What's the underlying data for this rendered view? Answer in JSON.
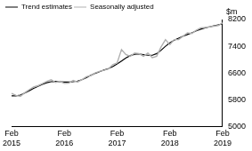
{
  "chart_data": {
    "type": "line",
    "y_label": "$m",
    "categories": [
      "Feb 2015",
      null,
      null,
      null,
      null,
      null,
      null,
      null,
      null,
      null,
      null,
      null,
      "Feb 2016",
      null,
      null,
      null,
      null,
      null,
      null,
      null,
      null,
      null,
      null,
      null,
      "Feb 2017",
      null,
      null,
      null,
      null,
      null,
      null,
      null,
      null,
      null,
      null,
      null,
      "Feb 2018",
      null,
      null,
      null,
      null,
      null,
      null,
      null,
      null,
      null,
      null,
      null,
      "Feb 2019"
    ],
    "series": [
      {
        "name": "Trend estimates",
        "color": "#000000",
        "values": [
          5920,
          5920,
          5940,
          6000,
          6070,
          6140,
          6200,
          6260,
          6310,
          6340,
          6350,
          6340,
          6330,
          6330,
          6340,
          6360,
          6400,
          6460,
          6530,
          6590,
          6640,
          6690,
          6730,
          6790,
          6870,
          6960,
          7050,
          7120,
          7160,
          7170,
          7150,
          7130,
          7130,
          7180,
          7280,
          7400,
          7500,
          7580,
          7640,
          7700,
          7750,
          7800,
          7860,
          7910,
          7950,
          7980,
          8010,
          8040,
          8070
        ]
      },
      {
        "name": "Seasonally adjusted",
        "color": "#b0b0b0",
        "values": [
          5990,
          5930,
          5900,
          6010,
          6100,
          6180,
          6220,
          6280,
          6350,
          6400,
          6320,
          6350,
          6290,
          6300,
          6380,
          6330,
          6400,
          6490,
          6520,
          6600,
          6650,
          6680,
          6720,
          6850,
          6900,
          7300,
          7150,
          7100,
          7200,
          7180,
          7100,
          7200,
          7060,
          7100,
          7380,
          7600,
          7450,
          7600,
          7600,
          7700,
          7800,
          7780,
          7880,
          7950,
          7960,
          7980,
          8000,
          8020,
          8100
        ]
      }
    ],
    "ylim": [
      5000,
      8200
    ],
    "yticks": [
      5000,
      5800,
      6600,
      7400,
      8200
    ],
    "grid": false,
    "legend": "top-left"
  }
}
